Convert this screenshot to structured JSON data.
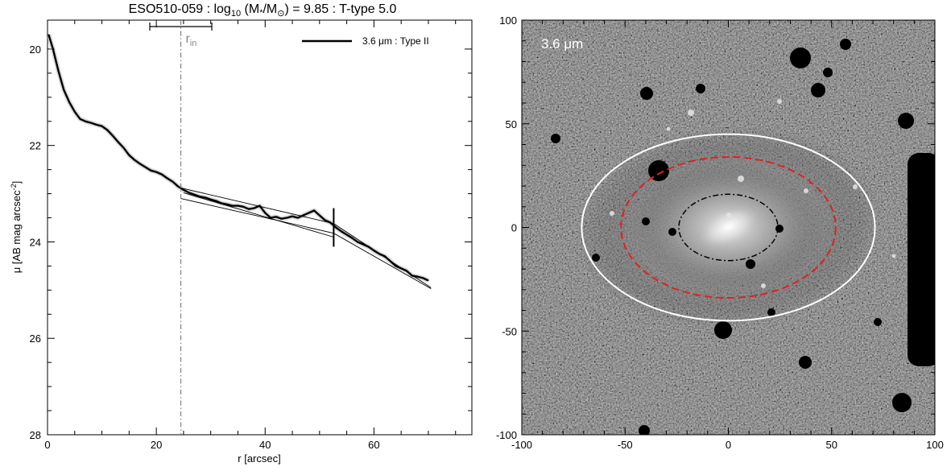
{
  "chart_data": [
    {
      "type": "line",
      "title_parts": {
        "name": "ESO510-059 : log",
        "sub10": "10",
        "mass_open": " (M",
        "star": "*",
        "slash": "/M",
        "sun": "⊙",
        "rest": ") = 9.85 : T-type 5.0"
      },
      "xlabel": "r [arcsec]",
      "ylabel_main": "μ [AB mag arcsec",
      "ylabel_sup": "-2",
      "ylabel_close": "]",
      "xlim": [
        0,
        78
      ],
      "ylim": [
        28,
        19.4
      ],
      "xticks": [
        0,
        20,
        40,
        60
      ],
      "yticks": [
        20,
        22,
        24,
        26,
        28
      ],
      "legend": {
        "position": "top-right",
        "label": "3.6 μm : Type II"
      },
      "grid": false,
      "series": [
        {
          "name": "3.6 μm : Type II",
          "x": [
            0.2,
            1,
            2,
            3,
            4,
            5,
            6,
            7,
            8,
            9,
            10,
            11,
            12,
            13,
            14,
            15,
            16,
            17,
            18,
            19,
            20,
            21,
            22,
            23,
            24,
            25,
            26,
            27,
            28,
            29,
            30,
            31,
            32,
            33,
            34,
            35,
            36,
            37,
            38,
            39,
            40,
            41,
            42,
            43,
            44,
            45,
            46,
            47,
            48,
            49,
            50,
            51,
            52,
            53,
            54,
            55,
            56,
            57,
            58,
            59,
            60,
            61,
            62,
            63,
            64,
            65,
            66,
            67,
            68,
            69,
            70
          ],
          "y": [
            19.7,
            20.0,
            20.45,
            20.85,
            21.1,
            21.3,
            21.45,
            21.5,
            21.53,
            21.57,
            21.6,
            21.68,
            21.8,
            21.93,
            22.05,
            22.2,
            22.3,
            22.38,
            22.45,
            22.52,
            22.55,
            22.6,
            22.68,
            22.75,
            22.85,
            22.92,
            22.98,
            23.02,
            23.06,
            23.08,
            23.12,
            23.15,
            23.2,
            23.22,
            23.25,
            23.25,
            23.27,
            23.32,
            23.3,
            23.25,
            23.4,
            23.5,
            23.48,
            23.52,
            23.5,
            23.47,
            23.5,
            23.45,
            23.4,
            23.35,
            23.45,
            23.55,
            23.6,
            23.7,
            23.78,
            23.85,
            23.92,
            24.0,
            24.05,
            24.1,
            24.18,
            24.25,
            24.3,
            24.4,
            24.5,
            24.55,
            24.6,
            24.7,
            24.72,
            24.75,
            24.8
          ]
        },
        {
          "name": "",
          "x": [
            25,
            52.6
          ],
          "y": [
            22.98,
            23.9
          ]
        },
        {
          "name": "",
          "x": [
            24.5,
            52.6,
            70.5
          ],
          "y": [
            23.1,
            23.82,
            24.97
          ]
        },
        {
          "name": "",
          "x": [
            24.5,
            52.6,
            70.5
          ],
          "y": [
            22.88,
            23.62,
            24.95
          ]
        }
      ],
      "r_in": {
        "label": "r",
        "sub": "in",
        "x": 24.5,
        "err_low": 18.8,
        "err_high": 30.2
      },
      "break_marker": {
        "x": 52.6,
        "y_low": 23.3,
        "y_high": 24.1
      }
    },
    {
      "type": "image",
      "band_label": "3.6 μm",
      "xlim": [
        -100,
        100
      ],
      "ylim": [
        -100,
        100
      ],
      "xticks": [
        -100,
        -50,
        0,
        50,
        100
      ],
      "yticks": [
        -100,
        -50,
        0,
        50,
        100
      ],
      "ellipses": [
        {
          "name": "outer",
          "color": "#ffffff",
          "style": "solid",
          "cx": 0,
          "cy": 0,
          "rx": 71,
          "ry": 45
        },
        {
          "name": "disk",
          "color": "#e02020",
          "style": "dashed",
          "cx": 0,
          "cy": 0,
          "rx": 52,
          "ry": 34
        },
        {
          "name": "inner",
          "color": "#000000",
          "style": "dash-dot",
          "cx": 0,
          "cy": 0,
          "rx": 24,
          "ry": 16
        }
      ]
    }
  ]
}
